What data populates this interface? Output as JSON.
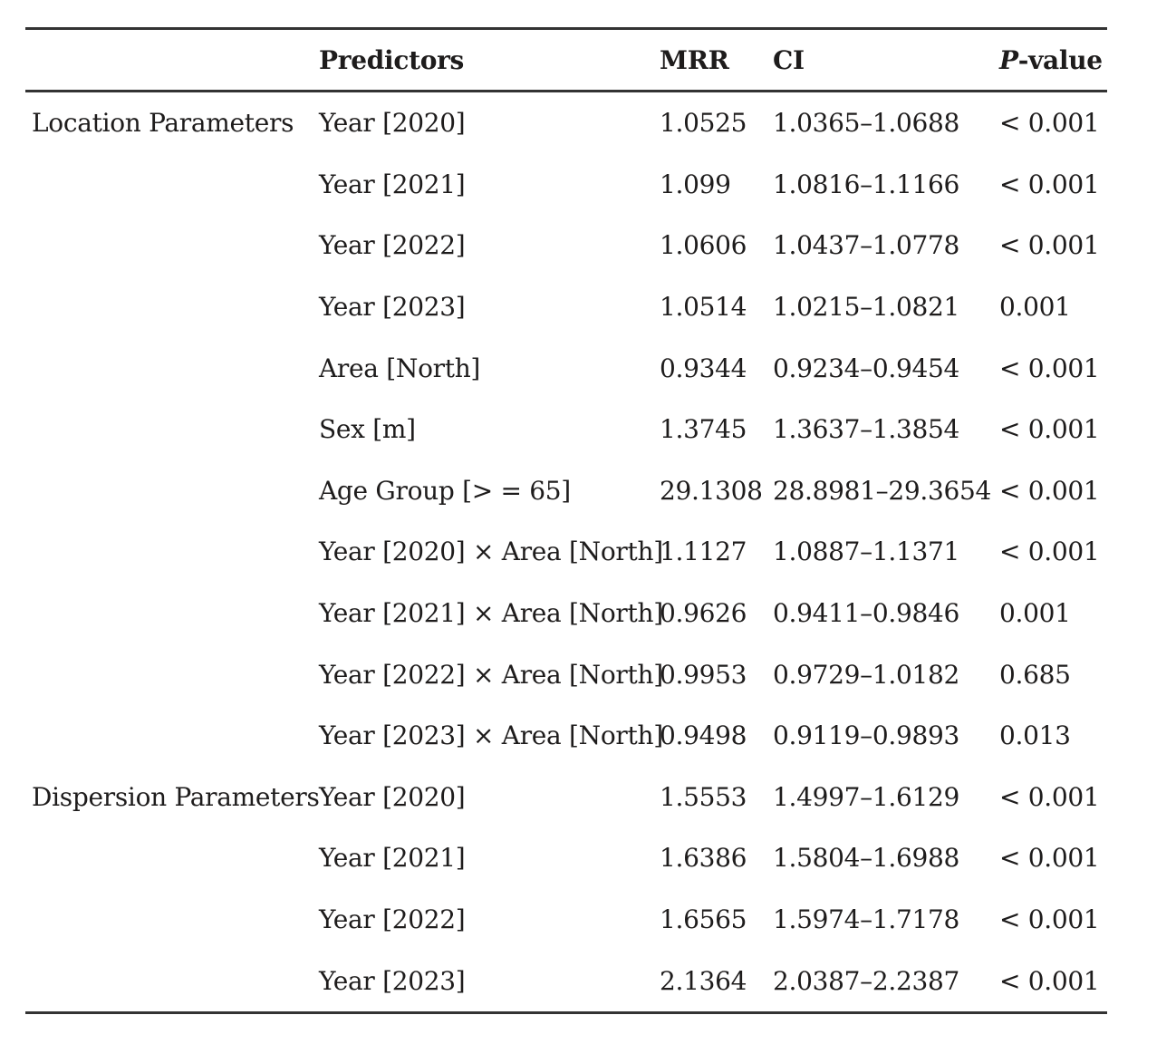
{
  "table": {
    "headers": {
      "group": "",
      "predictors": "Predictors",
      "mrr": "MRR",
      "ci": "CI",
      "p_italic": "P",
      "p_rest": "-value"
    },
    "rows": [
      {
        "group": "Location Parameters",
        "predictor": "Year [2020]",
        "mrr": "1.0525",
        "ci": "1.0365–1.0688",
        "p": "< 0.001"
      },
      {
        "group": "",
        "predictor": "Year [2021]",
        "mrr": "1.099",
        "ci": "1.0816–1.1166",
        "p": "< 0.001"
      },
      {
        "group": "",
        "predictor": "Year [2022]",
        "mrr": "1.0606",
        "ci": "1.0437–1.0778",
        "p": "< 0.001"
      },
      {
        "group": "",
        "predictor": "Year [2023]",
        "mrr": "1.0514",
        "ci": "1.0215–1.0821",
        "p": "0.001"
      },
      {
        "group": "",
        "predictor": "Area [North]",
        "mrr": "0.9344",
        "ci": "0.9234–0.9454",
        "p": "< 0.001"
      },
      {
        "group": "",
        "predictor": "Sex [m]",
        "mrr": "1.3745",
        "ci": "1.3637–1.3854",
        "p": "< 0.001"
      },
      {
        "group": "",
        "predictor": "Age Group [> = 65]",
        "mrr": "29.1308",
        "ci": "28.8981–29.3654",
        "p": "< 0.001"
      },
      {
        "group": "",
        "predictor": "Year [2020] × Area [North]",
        "mrr": "1.1127",
        "ci": "1.0887–1.1371",
        "p": "< 0.001"
      },
      {
        "group": "",
        "predictor": "Year [2021] × Area [North]",
        "mrr": "0.9626",
        "ci": "0.9411–0.9846",
        "p": "0.001"
      },
      {
        "group": "",
        "predictor": "Year [2022] × Area [North]",
        "mrr": "0.9953",
        "ci": "0.9729–1.0182",
        "p": "0.685"
      },
      {
        "group": "",
        "predictor": "Year [2023] × Area [North]",
        "mrr": "0.9498",
        "ci": "0.9119–0.9893",
        "p": "0.013"
      },
      {
        "group": "Dispersion Parameters",
        "predictor": "Year [2020]",
        "mrr": "1.5553",
        "ci": "1.4997–1.6129",
        "p": "< 0.001"
      },
      {
        "group": "",
        "predictor": "Year [2021]",
        "mrr": "1.6386",
        "ci": "1.5804–1.6988",
        "p": "< 0.001"
      },
      {
        "group": "",
        "predictor": "Year [2022]",
        "mrr": "1.6565",
        "ci": "1.5974–1.7178",
        "p": "< 0.001"
      },
      {
        "group": "",
        "predictor": "Year [2023]",
        "mrr": "2.1364",
        "ci": "2.0387–2.2387",
        "p": "< 0.001"
      }
    ]
  }
}
